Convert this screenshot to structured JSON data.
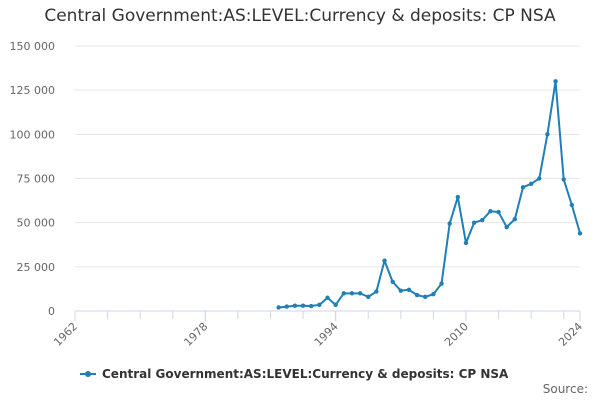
{
  "chart_data": {
    "type": "line",
    "title": "Central Government:AS:LEVEL:Currency & deposits: CP NSA",
    "xlabel": "",
    "ylabel": "",
    "xlim": [
      1962,
      2024
    ],
    "ylim": [
      0,
      150000
    ],
    "x_ticks": [
      1962,
      1978,
      1994,
      2010,
      2024
    ],
    "x_tick_labels": [
      "1962",
      "1978",
      "1994",
      "2010",
      "2024"
    ],
    "y_ticks": [
      0,
      25000,
      50000,
      75000,
      100000,
      125000,
      150000
    ],
    "y_tick_labels": [
      "0",
      "25 000",
      "50 000",
      "75 000",
      "100 000",
      "125 000",
      "150 000"
    ],
    "grid": "horizontal",
    "legend_position": "bottom",
    "series": [
      {
        "name": "Central Government:AS:LEVEL:Currency & deposits: CP NSA",
        "color": "#1f7fb6",
        "x": [
          1987,
          1988,
          1989,
          1990,
          1991,
          1992,
          1993,
          1994,
          1995,
          1996,
          1997,
          1998,
          1999,
          2000,
          2001,
          2002,
          2003,
          2004,
          2005,
          2006,
          2007,
          2008,
          2009,
          2010,
          2011,
          2012,
          2013,
          2014,
          2015,
          2016,
          2017,
          2018,
          2019,
          2020,
          2021,
          2022,
          2023,
          2024
        ],
        "values": [
          2000,
          2500,
          3000,
          3000,
          2800,
          3500,
          7500,
          3500,
          10000,
          10000,
          10000,
          8000,
          11000,
          28500,
          16500,
          11500,
          12000,
          9000,
          8000,
          9500,
          15500,
          49500,
          64500,
          38500,
          50000,
          51500,
          56500,
          56000,
          47500,
          52000,
          70000,
          72000,
          75000,
          100000,
          130000,
          74500,
          60000,
          44000
        ]
      }
    ]
  },
  "legend": {
    "label": "Central Government:AS:LEVEL:Currency & deposits: CP NSA"
  },
  "source": {
    "label": "Source:"
  }
}
